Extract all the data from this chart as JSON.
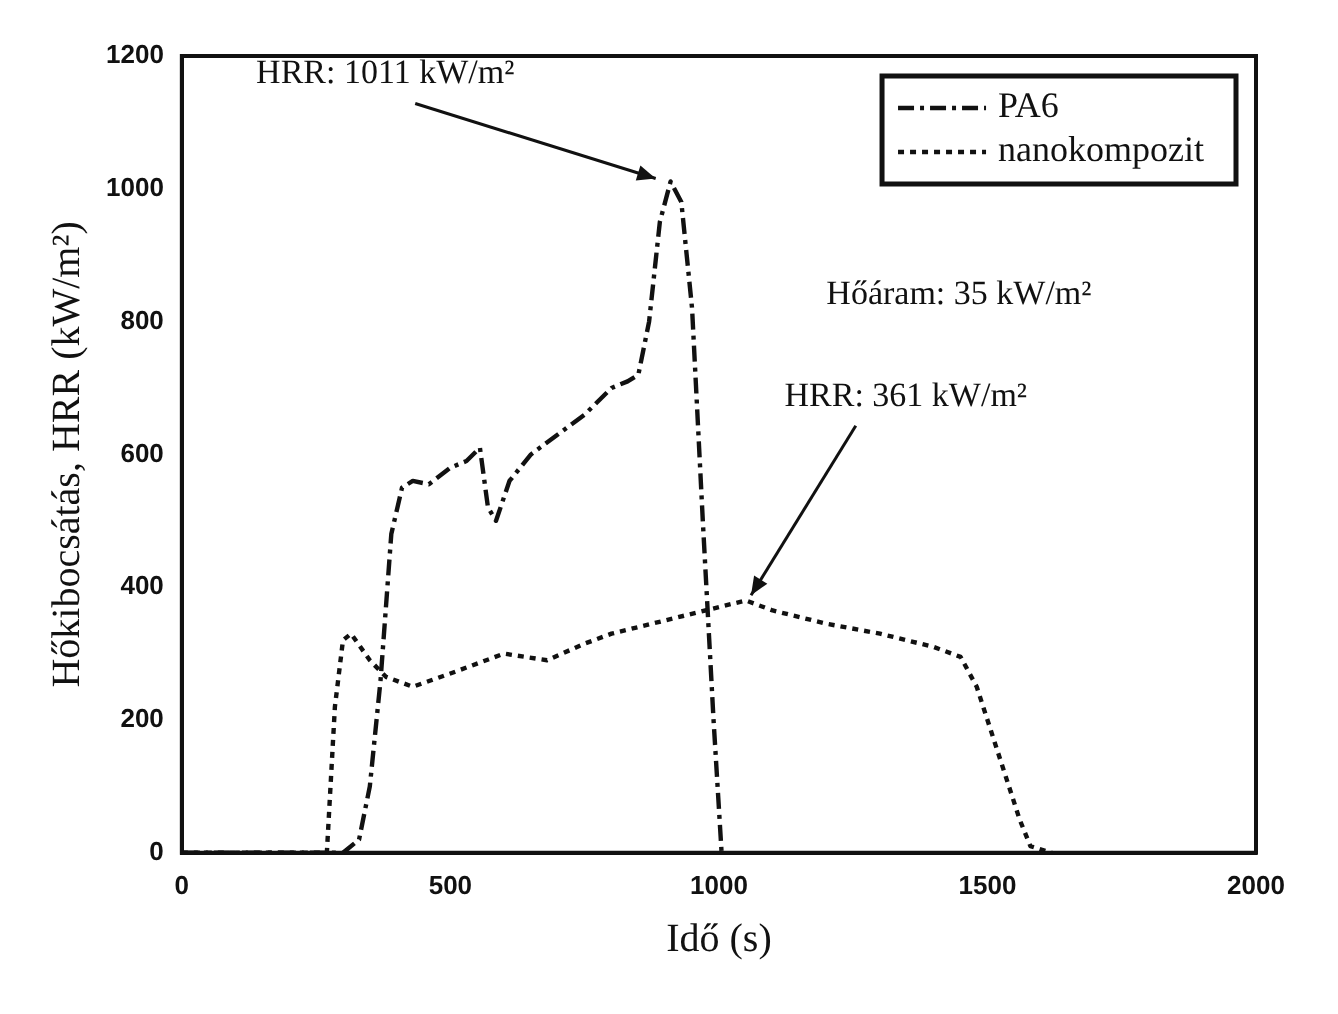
{
  "chart_data": {
    "type": "line",
    "xlabel": "Idő (s)",
    "ylabel": "Hőkibocsátás, HRR (kW/m²)",
    "xlim": [
      0,
      2000
    ],
    "xticks": [
      0,
      500,
      1000,
      1500,
      2000
    ],
    "ylim": [
      0,
      1200
    ],
    "yticks": [
      0,
      200,
      400,
      600,
      800,
      1000,
      1200
    ],
    "grid": false,
    "legend": "top right",
    "marker": "none",
    "series": [
      {
        "name": "PA6",
        "color": "#111111",
        "line_style": "dashed",
        "x": [
          0,
          100,
          200,
          300,
          330,
          350,
          370,
          390,
          410,
          430,
          460,
          500,
          530,
          555,
          570,
          585,
          610,
          650,
          700,
          750,
          800,
          830,
          850,
          870,
          890,
          910,
          930,
          950,
          970,
          990,
          1005
        ],
        "values": [
          0,
          0,
          0,
          0,
          20,
          100,
          260,
          480,
          550,
          560,
          555,
          580,
          590,
          610,
          520,
          500,
          560,
          600,
          630,
          660,
          700,
          710,
          720,
          800,
          950,
          1011,
          980,
          820,
          500,
          200,
          0
        ]
      },
      {
        "name": "nanokompozit",
        "color": "#111111",
        "line_style": "dotted",
        "x": [
          0,
          100,
          200,
          270,
          285,
          300,
          315,
          350,
          380,
          430,
          500,
          600,
          680,
          750,
          800,
          900,
          1000,
          1050,
          1100,
          1200,
          1300,
          1400,
          1450,
          1480,
          1520,
          1560,
          1580,
          1620
        ],
        "values": [
          0,
          0,
          0,
          0,
          220,
          320,
          330,
          290,
          265,
          250,
          270,
          300,
          290,
          315,
          330,
          350,
          370,
          380,
          365,
          345,
          330,
          310,
          295,
          250,
          150,
          50,
          10,
          0
        ]
      }
    ],
    "annotations": [
      {
        "text": "HRR: 1011 kW/m²",
        "x": 900,
        "y": 1011
      },
      "Hőáram: 35 kW/m²",
      {
        "text": "HRR: 361 kW/m²",
        "x": 1050,
        "y": 375
      }
    ]
  }
}
